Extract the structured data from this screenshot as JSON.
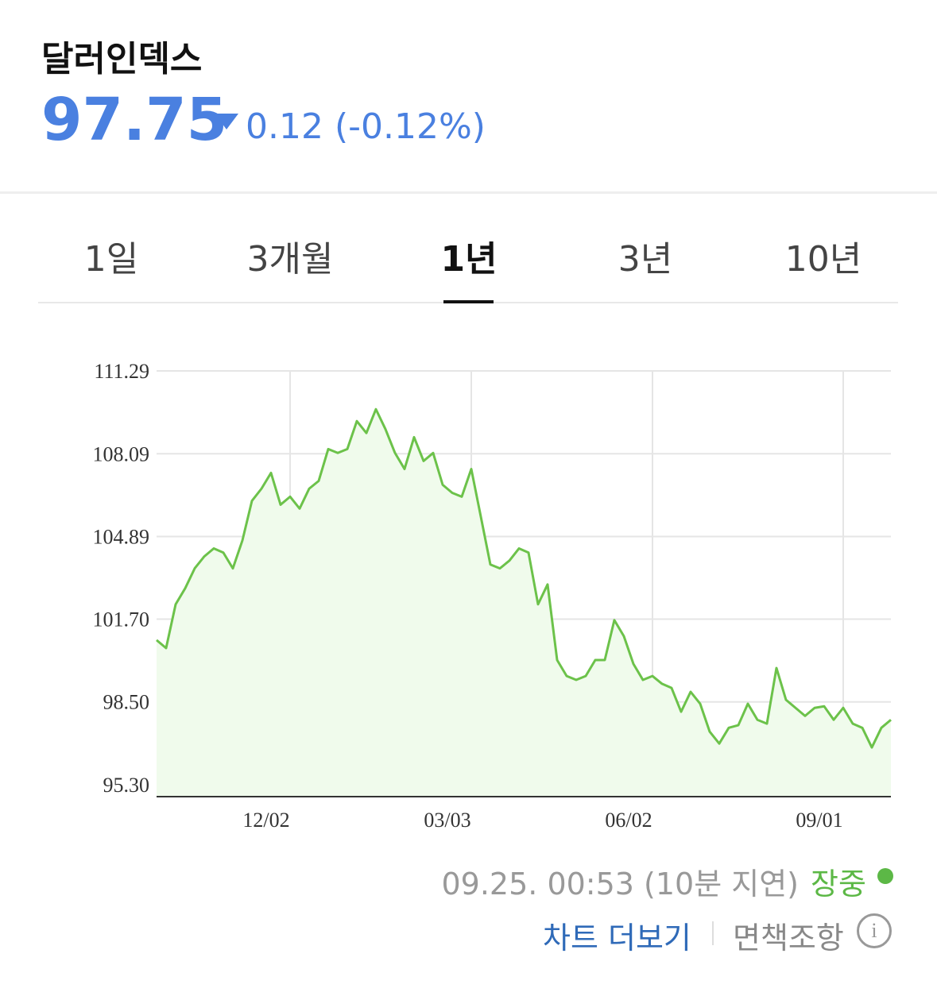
{
  "header": {
    "title": "달러인덱스",
    "price": "97.75",
    "change": "0.12 (-0.12%)"
  },
  "tabs": [
    "1일",
    "3개월",
    "1년",
    "3년",
    "10년"
  ],
  "chart_data": {
    "type": "line",
    "categories": [
      null,
      null,
      null,
      null,
      null,
      null,
      null,
      null,
      null,
      null,
      null,
      null,
      null,
      null,
      "12/02",
      null,
      null,
      null,
      null,
      null,
      null,
      null,
      null,
      null,
      null,
      null,
      null,
      null,
      null,
      null,
      null,
      null,
      null,
      "03/03",
      null,
      null,
      null,
      null,
      null,
      null,
      null,
      null,
      null,
      null,
      null,
      null,
      null,
      null,
      null,
      null,
      null,
      null,
      "06/02",
      null,
      null,
      null,
      null,
      null,
      null,
      null,
      null,
      null,
      null,
      null,
      null,
      null,
      null,
      null,
      null,
      null,
      null,
      null,
      "09/01",
      null,
      null,
      null,
      null,
      null
    ],
    "series": [
      {
        "color": "#6cc24a",
        "values": [
          100.89,
          100.58,
          102.27,
          102.89,
          103.66,
          104.12,
          104.43,
          104.27,
          103.66,
          104.74,
          106.27,
          106.74,
          107.35,
          106.12,
          106.43,
          105.97,
          106.74,
          107.04,
          108.27,
          108.12,
          108.27,
          109.35,
          108.89,
          109.81,
          109.04,
          108.12,
          107.5,
          108.73,
          107.81,
          108.12,
          106.89,
          106.58,
          106.43,
          107.5,
          105.66,
          103.81,
          103.66,
          103.96,
          104.43,
          104.27,
          102.27,
          103.04,
          100.12,
          99.5,
          99.35,
          99.5,
          100.12,
          100.12,
          101.66,
          101.04,
          99.97,
          99.35,
          99.5,
          99.2,
          99.04,
          98.12,
          98.89,
          98.43,
          97.35,
          96.89,
          97.5,
          97.6,
          98.43,
          97.81,
          97.66,
          99.81,
          98.58,
          98.27,
          97.96,
          98.27,
          98.33,
          97.81,
          98.27,
          97.66,
          97.5,
          96.74,
          97.5,
          97.81
        ]
      }
    ],
    "ylim": [
      94.84,
      111.29
    ],
    "yticks": [
      {
        "value": 95.3,
        "label": "95.30"
      },
      {
        "value": 98.5,
        "label": "98.50"
      },
      {
        "value": 101.7,
        "label": "101.70"
      },
      104.89,
      108.09,
      111.29
    ],
    "grid": true
  },
  "footer": {
    "timestamp": "09.25. 00:53 (10분 지연)",
    "status": "장중",
    "more": "차트 더보기",
    "disclaimer": "면책조항"
  }
}
